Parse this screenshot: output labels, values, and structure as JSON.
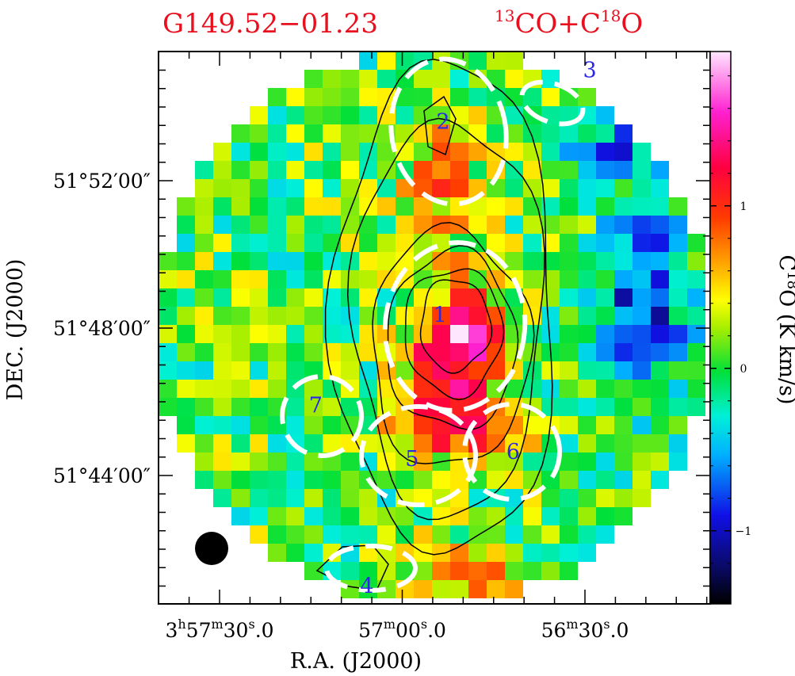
{
  "header": {
    "source_name": "G149.52−01.23",
    "tracer": {
      "base": "CO+C",
      "iso1": "13",
      "iso2": "18",
      "tail": "O"
    }
  },
  "chart_data": {
    "type": "heatmap",
    "title_left": "G149.52−01.23",
    "title_right": "13CO+C18O",
    "xlabel": "R.A. (J2000)",
    "ylabel": "DEC. (J2000)",
    "colorbar_label": {
      "base": "C",
      "sup": "18",
      "tail": "O (K km/s)"
    },
    "x_ticks": [
      {
        "h": "3",
        "m": "57",
        "s": "30",
        "frac": "0",
        "show_hm": true,
        "ra_s": 14250
      },
      {
        "h": "",
        "m": "57",
        "s": "00",
        "frac": "0",
        "show_hm": false,
        "ra_s": 14220
      },
      {
        "h": "",
        "m": "56",
        "s": "30",
        "frac": "0",
        "show_hm": false,
        "ra_s": 14190
      }
    ],
    "y_ticks": [
      {
        "label": "51°52′00″",
        "dec_arcmin": 3112
      },
      {
        "label": "51°48′00″",
        "dec_arcmin": 3108
      },
      {
        "label": "51°44′00″",
        "dec_arcmin": 3104
      }
    ],
    "colorbar": {
      "range": [
        -1.45,
        1.95
      ],
      "ticks": [
        {
          "value": 1,
          "label": "1"
        },
        {
          "value": 0,
          "label": "0"
        },
        {
          "value": -1,
          "label": "−1"
        }
      ]
    },
    "cores": [
      {
        "id": "1",
        "ra_s": 14213.8,
        "dec_arcmin": 3108.35
      },
      {
        "id": "2",
        "ra_s": 14213.3,
        "dec_arcmin": 3113.6
      },
      {
        "id": "3",
        "ra_s": 14189.2,
        "dec_arcmin": 3115.0
      },
      {
        "id": "4",
        "ra_s": 14225.8,
        "dec_arcmin": 3101.0
      },
      {
        "id": "5",
        "ra_s": 14218.4,
        "dec_arcmin": 3104.45
      },
      {
        "id": "6",
        "ra_s": 14201.8,
        "dec_arcmin": 3104.65
      },
      {
        "id": "7",
        "ra_s": 14234.2,
        "dec_arcmin": 3105.9
      }
    ],
    "beam": "filled-circle",
    "contour_color": "#000000",
    "ellipse_color": "#ffffff"
  }
}
